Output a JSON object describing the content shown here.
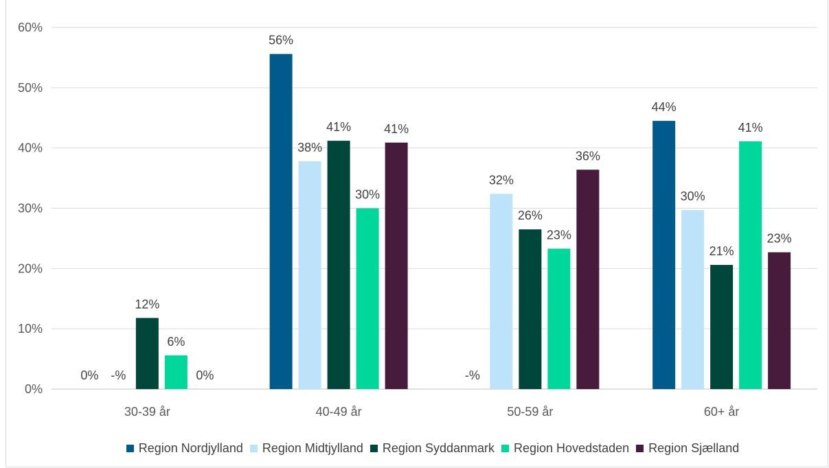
{
  "chart_data": {
    "type": "bar",
    "title": "",
    "categories": [
      "30-39 år",
      "40-49 år",
      "50-59 år",
      "60+ år"
    ],
    "series": [
      {
        "name": "Region Nordjylland",
        "color": "#005a8c",
        "values": [
          0,
          55.6,
          null,
          44.5
        ],
        "labels": [
          "0%",
          "56%",
          "",
          "44%"
        ]
      },
      {
        "name": "Region Midtjylland",
        "color": "#bde3fb",
        "values": [
          null,
          37.8,
          32.4,
          29.7
        ],
        "labels": [
          "-%",
          "38%",
          "32%",
          "30%"
        ]
      },
      {
        "name": "Region Syddanmark",
        "color": "#00463a",
        "values": [
          11.8,
          41.2,
          26.5,
          20.6
        ],
        "labels": [
          "12%",
          "41%",
          "26%",
          "21%"
        ]
      },
      {
        "name": "Region Hovedstaden",
        "color": "#00d79a",
        "values": [
          5.6,
          30.0,
          23.3,
          41.1
        ],
        "labels": [
          "6%",
          "30%",
          "23%",
          "41%"
        ]
      },
      {
        "name": "Region Sjælland",
        "color": "#461b3c",
        "values": [
          0,
          40.9,
          36.4,
          22.7
        ],
        "labels": [
          "0%",
          "41%",
          "36%",
          "23%"
        ]
      }
    ],
    "extra_labels": [
      {
        "category": 2,
        "series": 0,
        "text": "-%"
      }
    ],
    "ylim": [
      0,
      60
    ],
    "yticks": [
      "0%",
      "10%",
      "20%",
      "30%",
      "40%",
      "50%",
      "60%"
    ],
    "grid": true,
    "legend_position": "bottom"
  }
}
